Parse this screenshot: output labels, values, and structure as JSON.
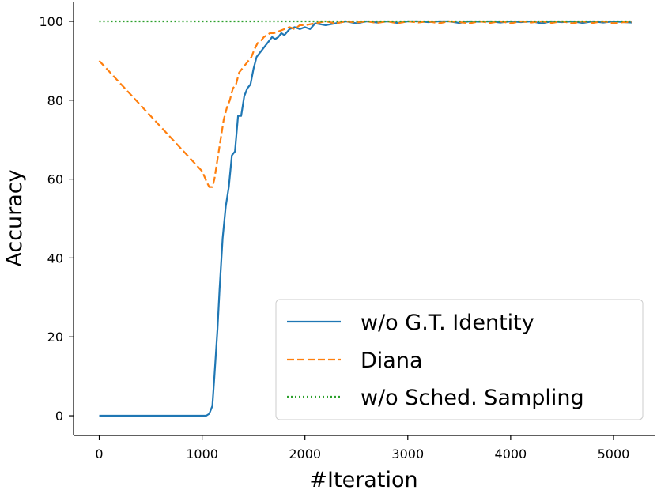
{
  "chart_data": {
    "type": "line",
    "title": "",
    "xlabel": "#Iteration",
    "ylabel": "Accuracy",
    "xlim": [
      -250,
      5400
    ],
    "ylim": [
      -5,
      105
    ],
    "xticks": [
      0,
      1000,
      2000,
      3000,
      4000,
      5000
    ],
    "yticks": [
      0,
      20,
      40,
      60,
      80,
      100
    ],
    "grid": false,
    "legend_position": "lower-right",
    "series": [
      {
        "name": "w/o G.T. Identity",
        "color": "#1f77b4",
        "style": "solid",
        "x": [
          0,
          1000,
          1040,
          1070,
          1100,
          1120,
          1150,
          1170,
          1200,
          1230,
          1260,
          1290,
          1320,
          1350,
          1380,
          1410,
          1440,
          1470,
          1500,
          1530,
          1560,
          1590,
          1620,
          1650,
          1680,
          1710,
          1740,
          1770,
          1800,
          1850,
          1900,
          1950,
          2000,
          2050,
          2100,
          2200,
          2300,
          2400,
          2500,
          2600,
          2700,
          2800,
          2900,
          3000,
          3100,
          3200,
          3300,
          3400,
          3500,
          3600,
          3700,
          3800,
          3900,
          4000,
          4100,
          4200,
          4300,
          4400,
          4500,
          4600,
          4700,
          4800,
          4900,
          5000,
          5100,
          5180
        ],
        "y": [
          0,
          0,
          0,
          0.5,
          2.5,
          10,
          22,
          32,
          45,
          53,
          58,
          66,
          67,
          76,
          76,
          81,
          83,
          84,
          88,
          91,
          92,
          93,
          94,
          95,
          96,
          95.5,
          96,
          97,
          96.5,
          98,
          98.5,
          98,
          98.5,
          98,
          99.5,
          99,
          99.5,
          100,
          99.5,
          100,
          99.7,
          100,
          99.6,
          100,
          100,
          99.8,
          100,
          100,
          99.6,
          100,
          99.9,
          100,
          99.7,
          100,
          99.8,
          100,
          99.5,
          100,
          99.8,
          100,
          99.6,
          100,
          99.7,
          100,
          99.8,
          99.7
        ]
      },
      {
        "name": "Diana",
        "color": "#ff7f0e",
        "style": "dashed",
        "x": [
          0,
          1000,
          1050,
          1070,
          1100,
          1120,
          1150,
          1180,
          1210,
          1240,
          1270,
          1300,
          1330,
          1360,
          1390,
          1420,
          1450,
          1480,
          1510,
          1540,
          1570,
          1600,
          1630,
          1660,
          1700,
          1750,
          1800,
          1850,
          1900,
          1950,
          2000,
          2100,
          2200,
          2300,
          2400,
          2500,
          2600,
          2700,
          2800,
          2900,
          3000,
          3100,
          3200,
          3300,
          3400,
          3500,
          3600,
          3700,
          3800,
          3900,
          4000,
          4100,
          4200,
          4300,
          4400,
          4500,
          4600,
          4700,
          4800,
          4900,
          5000,
          5100,
          5180
        ],
        "y": [
          90,
          62,
          59,
          58,
          58,
          60,
          65,
          70,
          75,
          78,
          80,
          83,
          84,
          87,
          88,
          89,
          90,
          91,
          93,
          94.5,
          95,
          96,
          96.5,
          97,
          97,
          97.5,
          98,
          98.5,
          98,
          99,
          99,
          99.5,
          100,
          99.5,
          100,
          99.7,
          100,
          99.6,
          100,
          99.5,
          100,
          99.7,
          100,
          99.5,
          100,
          99.8,
          99.5,
          100,
          99.6,
          100,
          99.5,
          100,
          99.7,
          100,
          99.6,
          100,
          99.5,
          100,
          99.6,
          100,
          99.5,
          99.8,
          99.8
        ]
      },
      {
        "name": "w/o Sched. Sampling",
        "color": "#2ca02c",
        "style": "dotted",
        "x": [
          0,
          5180
        ],
        "y": [
          100,
          100
        ]
      }
    ]
  }
}
